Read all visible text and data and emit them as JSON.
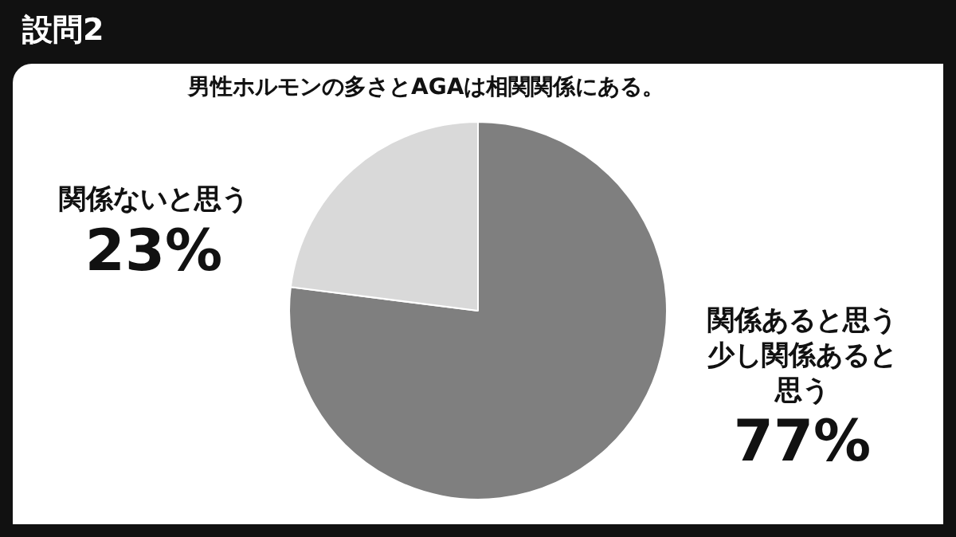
{
  "chart_data": {
    "type": "pie",
    "title": "男性ホルモンの多さとAGAは相関関係にある。",
    "subtitle": "設問2",
    "categories": [
      "関係あると思う少し関係あると思う",
      "関係ないと思う"
    ],
    "values": [
      77,
      23
    ],
    "colors": [
      "#7f7f7f",
      "#d9d9d9"
    ],
    "value_labels": [
      "77%",
      "23%"
    ],
    "legend": false
  }
}
